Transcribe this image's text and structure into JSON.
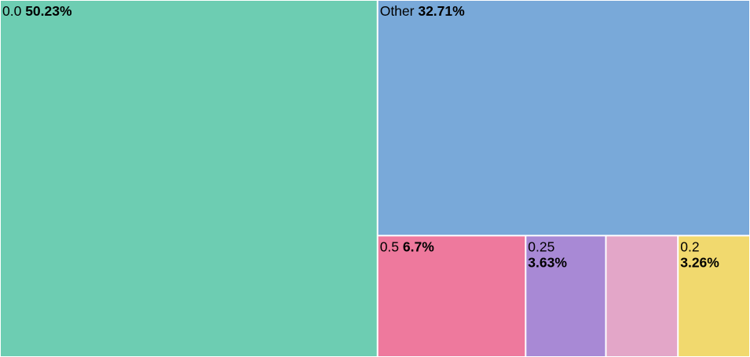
{
  "chart_data": {
    "type": "treemap",
    "title": "",
    "unit": "%",
    "items": [
      {
        "label": "0.0",
        "value": 50.23,
        "display": "50.23%",
        "color": "#6dcdb2",
        "layout": "inline"
      },
      {
        "label": "Other",
        "value": 32.71,
        "display": "32.71%",
        "color": "#79a9d9",
        "layout": "inline"
      },
      {
        "label": "0.5",
        "value": 6.7,
        "display": "6.7%",
        "color": "#ee799d",
        "layout": "inline"
      },
      {
        "label": "0.25",
        "value": 3.63,
        "display": "3.63%",
        "color": "#a889d5",
        "layout": "stacked"
      },
      {
        "label": "",
        "value": 3.26,
        "display": "",
        "color": "#e3a6c8",
        "layout": "none"
      },
      {
        "label": "0.2",
        "value": 3.26,
        "display": "3.26%",
        "color": "#f1d96e",
        "layout": "stacked"
      }
    ]
  }
}
